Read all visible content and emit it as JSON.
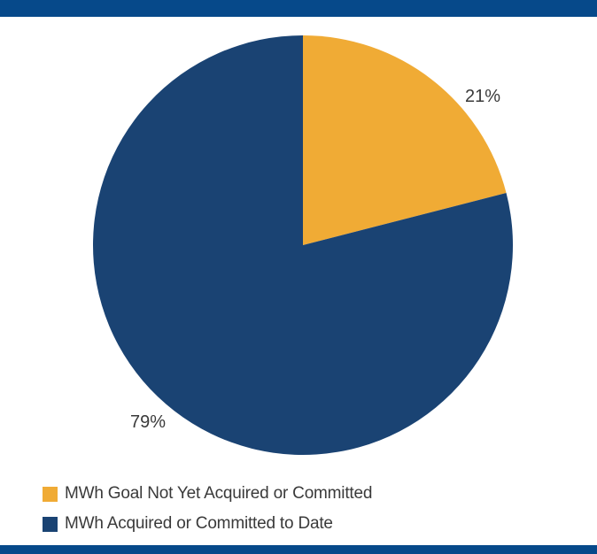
{
  "chart_data": {
    "type": "pie",
    "slices": [
      {
        "label": "MWh Goal Not Yet Acquired or Committed",
        "value": 21,
        "display": "21%",
        "color": "#f0ab35"
      },
      {
        "label": "MWh Acquired or Committed to Date",
        "value": 79,
        "display": "79%",
        "color": "#1a4373"
      }
    ],
    "start": "12 o'clock",
    "direction": "clockwise",
    "legend_position": "bottom-left"
  },
  "colors": {
    "band": "#06498a",
    "label_text": "#3a3a3a",
    "background": "#ffffff"
  }
}
